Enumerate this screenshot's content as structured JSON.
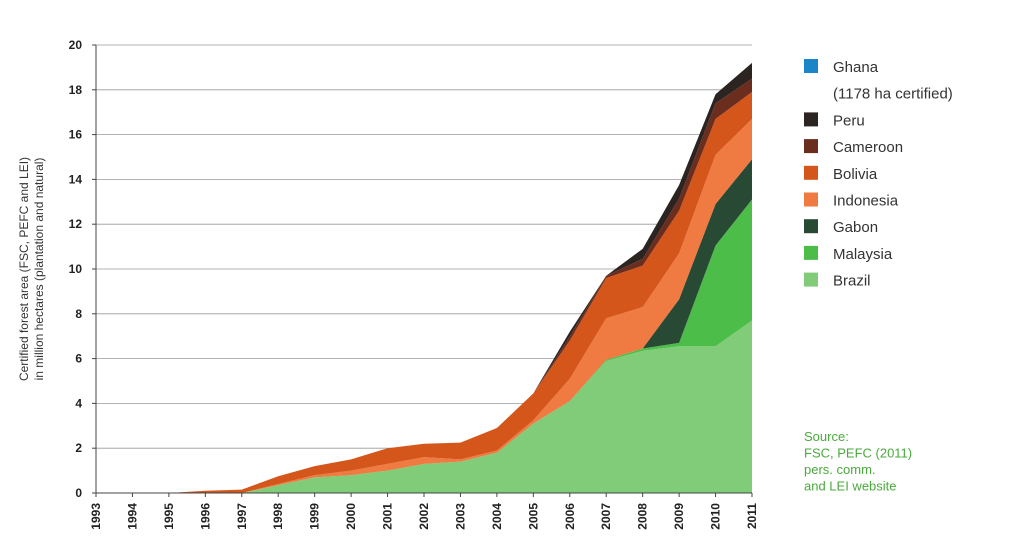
{
  "chart_data": {
    "type": "area",
    "stacked": true,
    "title": "",
    "ylabel_lines": [
      "Certified forest area (FSC, PEFC and LEI)",
      "in million hectares (plantation and natural)"
    ],
    "xlabel": "",
    "ylim": [
      0,
      20
    ],
    "yticks": [
      0,
      2,
      4,
      6,
      8,
      10,
      12,
      14,
      16,
      18,
      20
    ],
    "x": [
      "1993",
      "1994",
      "1995",
      "1996",
      "1997",
      "1998",
      "1999",
      "2000",
      "2001",
      "2002",
      "2003",
      "2004",
      "2005",
      "2006",
      "2007",
      "2008",
      "2009",
      "2010",
      "2011"
    ],
    "grid": "horizontal",
    "legend_position": "right",
    "series": [
      {
        "name": "Brazil",
        "color": "#80cc78",
        "values": [
          0,
          0,
          0,
          0,
          0,
          0.35,
          0.7,
          0.8,
          1.0,
          1.3,
          1.4,
          1.8,
          3.1,
          4.1,
          5.9,
          6.35,
          6.55,
          6.55,
          7.7
        ]
      },
      {
        "name": "Malaysia",
        "color": "#4dbd4a",
        "values": [
          0,
          0,
          0,
          0,
          0,
          0,
          0,
          0,
          0,
          0,
          0,
          0,
          0,
          0,
          0.05,
          0.1,
          0.15,
          4.5,
          5.4
        ]
      },
      {
        "name": "Gabon",
        "color": "#284a34",
        "values": [
          0,
          0,
          0,
          0,
          0,
          0,
          0,
          0,
          0,
          0,
          0,
          0,
          0,
          0,
          0,
          0,
          1.95,
          1.85,
          1.8
        ]
      },
      {
        "name": "Indonesia",
        "color": "#ef7a42",
        "values": [
          0,
          0,
          0,
          0,
          0,
          0.05,
          0.1,
          0.2,
          0.3,
          0.3,
          0.1,
          0.1,
          0.15,
          1.0,
          1.85,
          1.85,
          2.05,
          2.2,
          1.8
        ]
      },
      {
        "name": "Bolivia",
        "color": "#d4561a",
        "values": [
          0,
          0,
          0,
          0.1,
          0.15,
          0.35,
          0.4,
          0.5,
          0.7,
          0.6,
          0.75,
          1.0,
          1.2,
          1.7,
          1.8,
          1.85,
          1.9,
          1.6,
          1.2
        ]
      },
      {
        "name": "Cameroon",
        "color": "#6b2e1e",
        "values": [
          0,
          0,
          0,
          0,
          0,
          0,
          0,
          0,
          0,
          0,
          0,
          0,
          0,
          0.2,
          0.1,
          0.3,
          0.55,
          0.7,
          0.6
        ]
      },
      {
        "name": "Peru",
        "color": "#2b2420",
        "values": [
          0,
          0,
          0,
          0,
          0,
          0,
          0,
          0,
          0,
          0,
          0,
          0,
          0,
          0.2,
          0,
          0.45,
          0.6,
          0.4,
          0.7
        ]
      }
    ],
    "legend": [
      {
        "name": "Ghana",
        "color": "#1a86c8",
        "note": "(1178 ha certified)"
      },
      {
        "name": "Peru",
        "color": "#2b2420"
      },
      {
        "name": "Cameroon",
        "color": "#6b2e1e"
      },
      {
        "name": "Bolivia",
        "color": "#d4561a"
      },
      {
        "name": "Indonesia",
        "color": "#ef7a42"
      },
      {
        "name": "Gabon",
        "color": "#284a34"
      },
      {
        "name": "Malaysia",
        "color": "#4dbd4a"
      },
      {
        "name": "Brazil",
        "color": "#80cc78"
      }
    ],
    "source_lines": [
      "Source:",
      "FSC, PEFC (2011)",
      "pers. comm.",
      "and LEI website"
    ]
  }
}
